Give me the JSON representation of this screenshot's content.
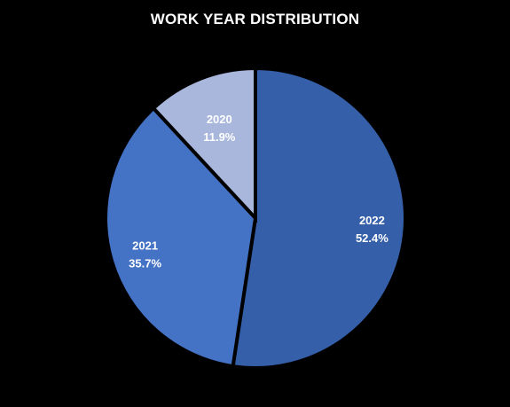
{
  "chart_data": {
    "type": "pie",
    "title": "WORK YEAR DISTRIBUTION",
    "categories": [
      "2022",
      "2021",
      "2020"
    ],
    "values": [
      52.4,
      35.7,
      11.9
    ],
    "percent_labels": [
      "52.4%",
      "35.7%",
      "11.9%"
    ],
    "colors": [
      "#355fa8",
      "#4472c4",
      "#a9b7dd"
    ],
    "legend": "none"
  },
  "background": "#000000",
  "separator_color": "#000000"
}
